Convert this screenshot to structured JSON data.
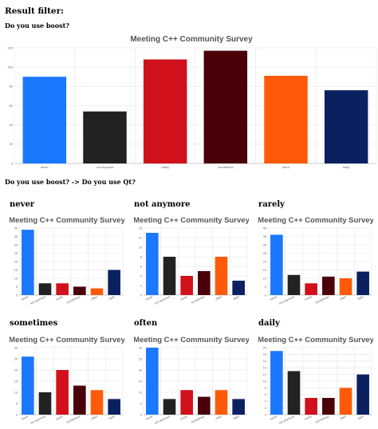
{
  "page": {
    "filter_heading": "Result filter:",
    "question1": "Do you use boost?",
    "question2": "Do you use boost? -> Do you use Qt?",
    "subsections": [
      "never",
      "not anymore",
      "rarely",
      "sometimes",
      "often",
      "daily"
    ]
  },
  "colors": {
    "never": "#1a78ff",
    "not_anymore": "#222222",
    "rarely": "#d0101a",
    "sometimes": "#4a0008",
    "often": "#ff5a0a",
    "daily": "#0a2060",
    "grid": "#e6e6e6",
    "title": "#555555"
  },
  "chart_data": [
    {
      "type": "bar",
      "title": "Meeting C++ Community Survey",
      "categories": [
        "never",
        "not anymore",
        "rarely",
        "sometimes",
        "often",
        "daily"
      ],
      "values": [
        90,
        54,
        108,
        117,
        91,
        76
      ],
      "ylim": [
        0,
        120
      ],
      "yticks": [
        "0",
        "20",
        "40",
        "60",
        "80",
        "100",
        "120"
      ]
    },
    {
      "type": "bar",
      "title": "Meeting C++ Community Survey",
      "categories": [
        "never",
        "not anymore",
        "rarely",
        "sometimes",
        "often",
        "daily"
      ],
      "values": [
        39,
        7,
        7,
        5,
        4,
        15
      ],
      "ylim": [
        0,
        40
      ],
      "yticks": [
        "0",
        "5",
        "10",
        "15",
        "20",
        "25",
        "30",
        "35",
        "40"
      ]
    },
    {
      "type": "bar",
      "title": "Meeting C++ Community Survey",
      "categories": [
        "never",
        "not anymore",
        "rarely",
        "sometimes",
        "often",
        "daily"
      ],
      "values": [
        13,
        8,
        4,
        5,
        8,
        3
      ],
      "ylim": [
        0,
        14
      ],
      "yticks": [
        "0",
        "2",
        "4",
        "6",
        "8",
        "10",
        "12",
        "14"
      ]
    },
    {
      "type": "bar",
      "title": "Meeting C++ Community Survey",
      "categories": [
        "never",
        "not anymore",
        "rarely",
        "sometimes",
        "often",
        "daily"
      ],
      "values": [
        36,
        12,
        7,
        11,
        10,
        14
      ],
      "ylim": [
        0,
        40
      ],
      "yticks": [
        "0",
        "5",
        "10",
        "15",
        "20",
        "25",
        "30",
        "35",
        "40"
      ]
    },
    {
      "type": "bar",
      "title": "Meeting C++ Community Survey",
      "categories": [
        "never",
        "not anymore",
        "rarely",
        "sometimes",
        "often",
        "daily"
      ],
      "values": [
        26,
        10,
        20,
        13,
        11,
        7
      ],
      "ylim": [
        0,
        30
      ],
      "yticks": [
        "0",
        "5",
        "10",
        "15",
        "20",
        "25",
        "30"
      ]
    },
    {
      "type": "bar",
      "title": "Meeting C++ Community Survey",
      "categories": [
        "never",
        "not anymore",
        "rarely",
        "sometimes",
        "often",
        "daily"
      ],
      "values": [
        30,
        7,
        11,
        8,
        11,
        7
      ],
      "ylim": [
        0,
        30
      ],
      "yticks": [
        "0",
        "5",
        "10",
        "15",
        "20",
        "25",
        "30"
      ]
    },
    {
      "type": "bar",
      "title": "Meeting C++ Community Survey",
      "categories": [
        "never",
        "not anymore",
        "rarely",
        "sometimes",
        "often",
        "daily"
      ],
      "values": [
        19,
        13,
        5,
        5,
        8,
        12
      ],
      "ylim": [
        0,
        20
      ],
      "yticks": [
        "0",
        "2",
        "4",
        "6",
        "8",
        "10",
        "12",
        "14",
        "16",
        "18",
        "20"
      ]
    }
  ]
}
